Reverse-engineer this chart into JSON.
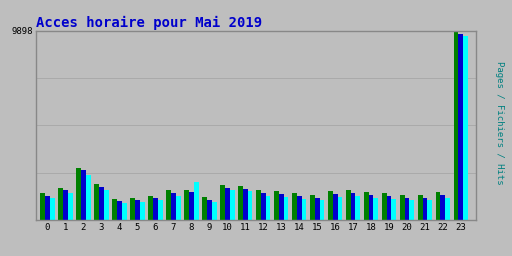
{
  "title": "Acces horaire pour Mai 2019",
  "title_color": "#0000CC",
  "title_fontsize": 10,
  "ylabel_text": "Pages / Fichiers / Hits",
  "ylabel_color": "#008080",
  "background_color": "#BEBEBE",
  "plot_bg_color": "#BEBEBE",
  "bar_width": 0.27,
  "ylim_max": 9898,
  "ytick_label": "9898",
  "categories": [
    0,
    1,
    2,
    3,
    4,
    5,
    6,
    7,
    8,
    9,
    10,
    11,
    12,
    13,
    14,
    15,
    16,
    17,
    18,
    19,
    20,
    21,
    22,
    23
  ],
  "pages": [
    1400,
    1700,
    2750,
    1900,
    1100,
    1150,
    1250,
    1550,
    1600,
    1200,
    1850,
    1800,
    1550,
    1500,
    1400,
    1300,
    1500,
    1550,
    1450,
    1400,
    1300,
    1300,
    1450,
    9898
  ],
  "fichiers": [
    1250,
    1550,
    2600,
    1750,
    1000,
    1050,
    1150,
    1400,
    1450,
    1050,
    1700,
    1650,
    1400,
    1350,
    1250,
    1150,
    1350,
    1400,
    1300,
    1250,
    1150,
    1150,
    1300,
    9750
  ],
  "hits": [
    1150,
    1400,
    2350,
    1600,
    900,
    950,
    1050,
    1250,
    2000,
    950,
    1550,
    1500,
    1250,
    1200,
    1100,
    1050,
    1200,
    1250,
    1150,
    1100,
    1050,
    1050,
    1150,
    9600
  ],
  "color_pages": "#008000",
  "color_fichiers": "#0000CC",
  "color_hits": "#00FFFF",
  "grid_color": "#AAAAAA",
  "border_color": "#888888"
}
